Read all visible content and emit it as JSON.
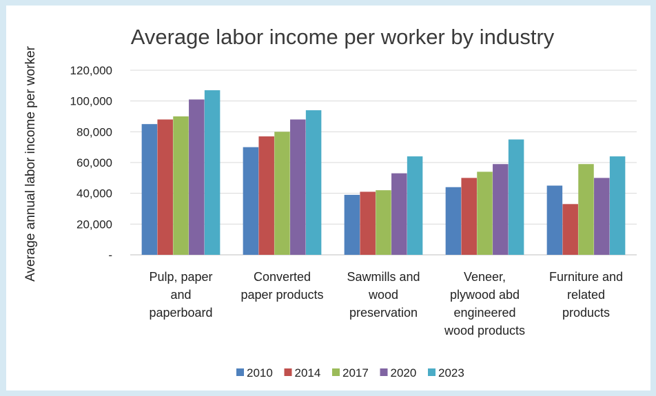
{
  "chart_data": {
    "type": "bar",
    "title": "Average labor income per worker by industry",
    "xlabel": "",
    "ylabel": "Average annual labor income per worker",
    "ylim": [
      0,
      120000
    ],
    "yticks": [
      0,
      20000,
      40000,
      60000,
      80000,
      100000,
      120000
    ],
    "ytick_labels": [
      "-",
      "20,000",
      "40,000",
      "60,000",
      "80,000",
      "100,000",
      "120,000"
    ],
    "grid": true,
    "legend_position": "bottom",
    "categories": [
      [
        "Pulp, paper",
        "and",
        "paperboard"
      ],
      [
        "Converted",
        "paper products"
      ],
      [
        "Sawmills and",
        "wood",
        "preservation"
      ],
      [
        "Veneer,",
        "plywood abd",
        "engineered",
        "wood products"
      ],
      [
        "Furniture and",
        "related",
        "products"
      ]
    ],
    "series": [
      {
        "name": "2010",
        "color": "#4f81bd",
        "values": [
          85000,
          70000,
          39000,
          44000,
          45000
        ]
      },
      {
        "name": "2014",
        "color": "#c0504d",
        "values": [
          88000,
          77000,
          41000,
          50000,
          33000
        ]
      },
      {
        "name": "2017",
        "color": "#9bbb59",
        "values": [
          90000,
          80000,
          42000,
          54000,
          59000
        ]
      },
      {
        "name": "2020",
        "color": "#8064a2",
        "values": [
          101000,
          88000,
          53000,
          59000,
          50000
        ]
      },
      {
        "name": "2023",
        "color": "#4bacc6",
        "values": [
          107000,
          94000,
          64000,
          75000,
          64000
        ]
      }
    ]
  }
}
